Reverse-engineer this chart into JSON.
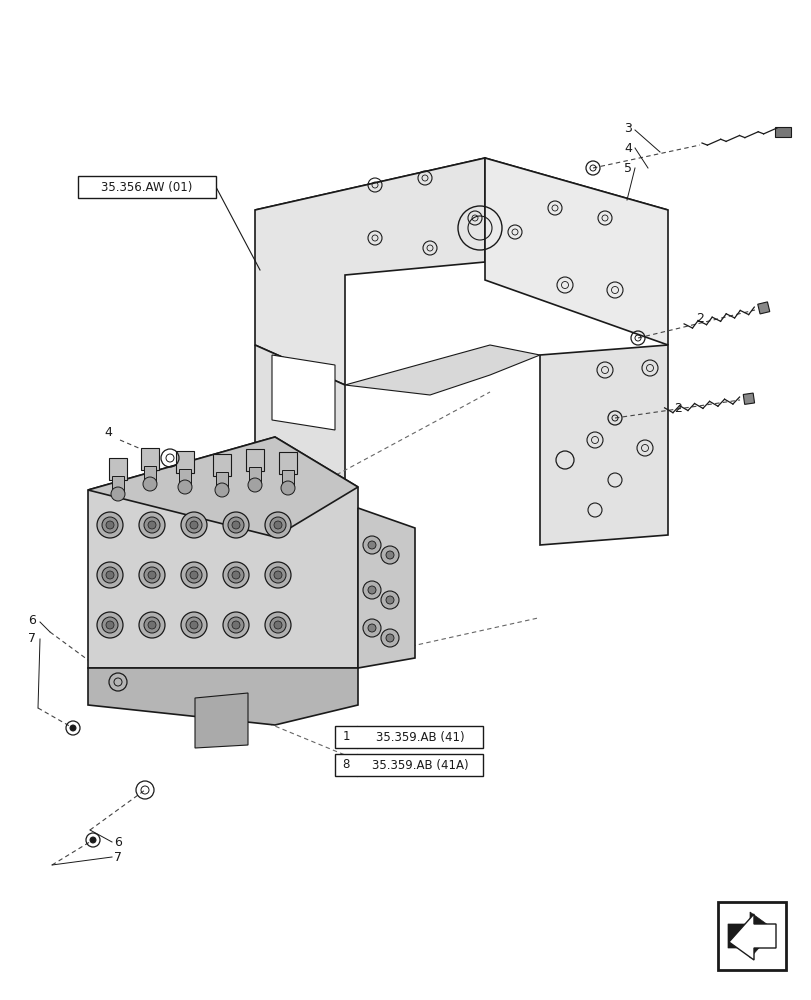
{
  "background_color": "#ffffff",
  "line_color": "#1a1a1a",
  "label_color": "#000000",
  "title": "",
  "labels": {
    "ref_35356": "35.356.AW (01)",
    "ref_35359_41": "35.359.AB (41)",
    "ref_35359_41A": "35.359.AB (41A)"
  },
  "part_numbers": {
    "n2_top": "2",
    "n2_bot": "2",
    "n3": "3",
    "n4_top": "4",
    "n4_left": "4",
    "n5": "5",
    "n6_top": "6",
    "n6_bot": "6",
    "n7_top": "7",
    "n7_bot": "7"
  }
}
